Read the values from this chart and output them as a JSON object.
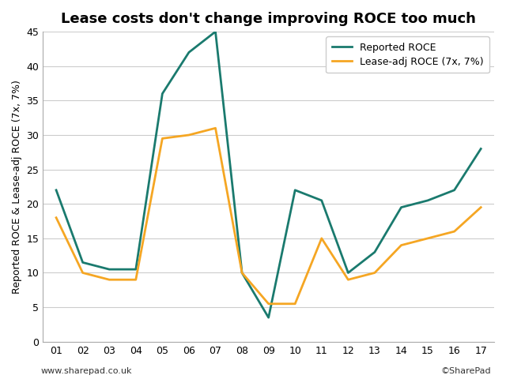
{
  "title": "Lease costs don't change improving ROCE too much",
  "ylabel": "Reported ROCE & Lease-adj ROCE (7x, 7%)",
  "years": [
    "01",
    "02",
    "03",
    "04",
    "05",
    "06",
    "07",
    "08",
    "09",
    "10",
    "11",
    "12",
    "13",
    "14",
    "15",
    "16",
    "17"
  ],
  "reported_roce": [
    22,
    11.5,
    10.5,
    10.5,
    36,
    42,
    45,
    10,
    3.5,
    22,
    20.5,
    10,
    13,
    19.5,
    20.5,
    22,
    28
  ],
  "lease_adj_roce": [
    18,
    10,
    9,
    9,
    29.5,
    30,
    31,
    10,
    5.5,
    5.5,
    15,
    9,
    10,
    14,
    15,
    16,
    19.5
  ],
  "reported_color": "#1a7a6e",
  "lease_adj_color": "#f5a623",
  "ylim": [
    0,
    45
  ],
  "yticks": [
    0,
    5,
    10,
    15,
    20,
    25,
    30,
    35,
    40,
    45
  ],
  "legend_labels": [
    "Reported ROCE",
    "Lease-adj ROCE (7x, 7%)"
  ],
  "footnote_left": "www.sharepad.co.uk",
  "footnote_right": "©SharePad",
  "background_color": "#ffffff",
  "grid_color": "#cccccc",
  "figsize": [
    6.4,
    4.8
  ],
  "dpi": 100
}
